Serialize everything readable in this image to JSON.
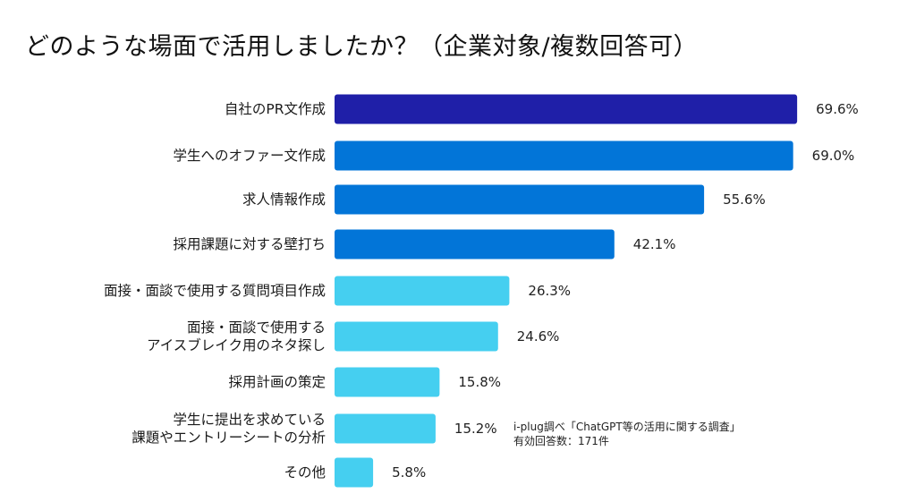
{
  "chart_data": {
    "type": "bar",
    "orientation": "horizontal",
    "title": "どのような場面で活用しましたか？（企業対象/複数回答可）",
    "xlabel": "",
    "ylabel": "",
    "xlim": [
      0,
      70
    ],
    "grid": false,
    "legend": "none",
    "value_suffix": "%",
    "categories": [
      [
        "自社のPR文作成"
      ],
      [
        "学生へのオファー文作成"
      ],
      [
        "求人情報作成"
      ],
      [
        "採用課題に対する壁打ち"
      ],
      [
        "面接・面談で使用する質問項目作成"
      ],
      [
        "面接・面談で使用する",
        "アイスブレイク用のネタ探し"
      ],
      [
        "採用計画の策定"
      ],
      [
        "学生に提出を求めている",
        "課題やエントリーシートの分析"
      ],
      [
        "その他"
      ]
    ],
    "values": [
      69.6,
      69.0,
      55.6,
      42.1,
      26.3,
      24.6,
      15.8,
      15.2,
      5.8
    ],
    "value_labels": [
      "69.6%",
      "69.0%",
      "55.6%",
      "42.1%",
      "26.3%",
      "24.6%",
      "15.8%",
      "15.2%",
      "5.8%"
    ],
    "colors": [
      "#1f1fa8",
      "#0275d8",
      "#0275d8",
      "#0275d8",
      "#45cff0",
      "#45cff0",
      "#45cff0",
      "#45cff0",
      "#45cff0"
    ],
    "annotation": {
      "line1": "i-plug調べ「ChatGPT等の活用に関する調査」",
      "line2": "有効回答数：171件"
    }
  }
}
